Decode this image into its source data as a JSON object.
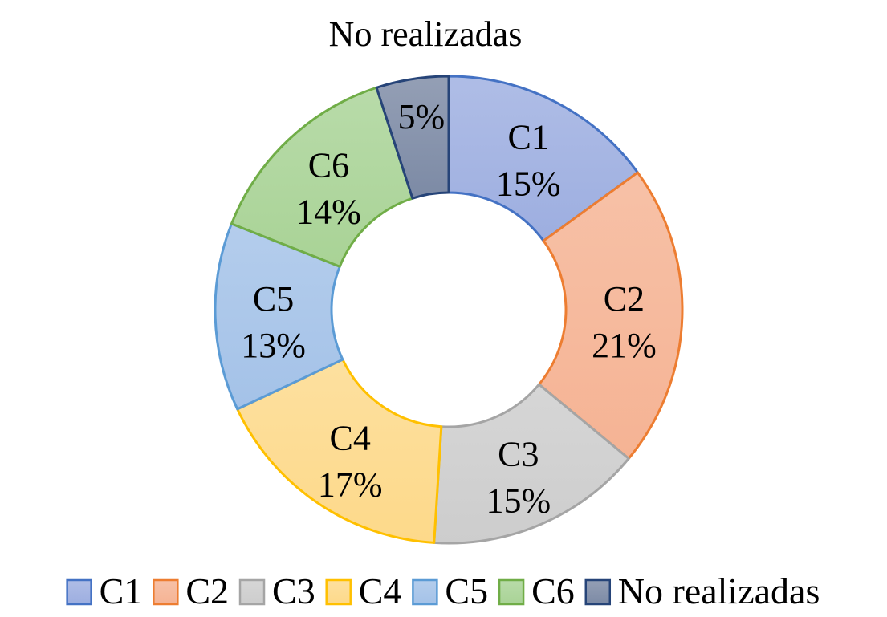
{
  "chart_data": {
    "type": "pie",
    "subtype": "donut",
    "title": "No realizadas",
    "categories": [
      "C1",
      "C2",
      "C3",
      "C4",
      "C5",
      "C6",
      "No realizadas"
    ],
    "values": [
      15,
      21,
      15,
      17,
      13,
      14,
      5
    ],
    "value_labels": [
      "15%",
      "21%",
      "15%",
      "17%",
      "13%",
      "14%",
      "5%"
    ],
    "unit": "%",
    "show_category_in_label": [
      true,
      true,
      true,
      true,
      true,
      true,
      false
    ],
    "fill_colors": [
      "#9daee0",
      "#f5b394",
      "#cdcdcd",
      "#fdd98a",
      "#a4c2e8",
      "#a9d396",
      "#7c8aa5"
    ],
    "stroke_colors": [
      "#4472c4",
      "#ed7d31",
      "#a5a5a5",
      "#ffc000",
      "#5b9bd5",
      "#70ad47",
      "#264478"
    ],
    "legend": {
      "position": "bottom",
      "entries": [
        "C1",
        "C2",
        "C3",
        "C4",
        "C5",
        "C6",
        "No realizadas"
      ]
    }
  }
}
